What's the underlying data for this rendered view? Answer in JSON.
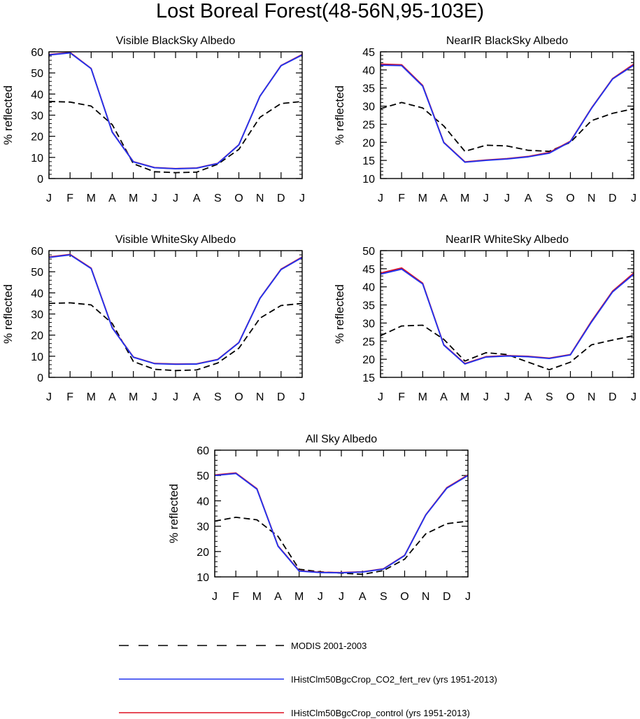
{
  "figure": {
    "title": "Lost Boreal Forest(48-56N,95-103E)"
  },
  "colors": {
    "modis": "#000000",
    "co2_fert_rev": "#2233ee",
    "control": "#dd1122"
  },
  "chart_data": [
    {
      "type": "line",
      "title": "Visible BlackSky Albedo",
      "ylabel": "% reflected",
      "xlabel": "",
      "categories": [
        "J",
        "F",
        "M",
        "A",
        "M",
        "J",
        "J",
        "A",
        "S",
        "O",
        "N",
        "D",
        "J"
      ],
      "ylim": [
        0,
        60
      ],
      "yticks": [
        0,
        10,
        20,
        30,
        40,
        50,
        60
      ],
      "series": [
        {
          "name": "MODIS 2001-2003",
          "values": [
            36.5,
            36.2,
            34.3,
            25.5,
            7.0,
            3.2,
            2.8,
            3.0,
            6.8,
            13.8,
            29.0,
            35.5,
            36.5
          ]
        },
        {
          "name": "IHistClm50BgcCrop_control (yrs 1951-2013)",
          "values": [
            58.7,
            59.7,
            52.1,
            22.0,
            8.0,
            5.2,
            4.7,
            5.0,
            7.2,
            16.0,
            39.0,
            53.5,
            58.7
          ]
        },
        {
          "name": "IHistClm50BgcCrop_CO2_fert_rev (yrs 1951-2013)",
          "values": [
            58.5,
            59.5,
            52.0,
            21.9,
            7.9,
            5.1,
            4.6,
            4.9,
            7.1,
            15.9,
            39.0,
            53.4,
            58.5
          ]
        }
      ],
      "grid": false
    },
    {
      "type": "line",
      "title": "NearIR BlackSky Albedo",
      "ylabel": "% reflected",
      "xlabel": "",
      "categories": [
        "J",
        "F",
        "M",
        "A",
        "M",
        "J",
        "J",
        "A",
        "S",
        "O",
        "N",
        "D",
        "J"
      ],
      "ylim": [
        10,
        45
      ],
      "yticks": [
        10,
        15,
        20,
        25,
        30,
        35,
        40,
        45
      ],
      "series": [
        {
          "name": "MODIS 2001-2003",
          "values": [
            29.3,
            31.0,
            29.5,
            24.5,
            17.5,
            19.2,
            19.0,
            17.8,
            17.5,
            20.0,
            26.0,
            28.0,
            29.3
          ]
        },
        {
          "name": "IHistClm50BgcCrop_control (yrs 1951-2013)",
          "values": [
            41.6,
            41.4,
            35.7,
            20.0,
            14.6,
            15.1,
            15.5,
            16.1,
            17.2,
            20.3,
            29.5,
            37.6,
            41.6
          ]
        },
        {
          "name": "IHistClm50BgcCrop_CO2_fert_rev (yrs 1951-2013)",
          "values": [
            41.3,
            41.2,
            35.5,
            19.9,
            14.5,
            15.0,
            15.4,
            16.0,
            17.0,
            20.2,
            29.4,
            37.5,
            41.3
          ]
        }
      ],
      "grid": false
    },
    {
      "type": "line",
      "title": "Visible WhiteSky Albedo",
      "ylabel": "% reflected",
      "xlabel": "",
      "categories": [
        "J",
        "F",
        "M",
        "A",
        "M",
        "J",
        "J",
        "A",
        "S",
        "O",
        "N",
        "D",
        "J"
      ],
      "ylim": [
        0,
        60
      ],
      "yticks": [
        0,
        10,
        20,
        30,
        40,
        50,
        60
      ],
      "series": [
        {
          "name": "MODIS 2001-2003",
          "values": [
            35.0,
            35.3,
            34.3,
            25.5,
            7.5,
            3.8,
            3.2,
            3.5,
            6.8,
            13.8,
            28.0,
            34.0,
            35.0
          ]
        },
        {
          "name": "IHistClm50BgcCrop_control (yrs 1951-2013)",
          "values": [
            57.0,
            58.2,
            51.7,
            23.5,
            9.6,
            6.6,
            6.3,
            6.4,
            8.5,
            16.5,
            37.5,
            51.2,
            57.0
          ]
        },
        {
          "name": "IHistClm50BgcCrop_CO2_fert_rev (yrs 1951-2013)",
          "values": [
            56.8,
            58.0,
            51.5,
            23.4,
            9.5,
            6.5,
            6.2,
            6.3,
            8.4,
            16.4,
            37.4,
            51.0,
            56.8
          ]
        }
      ],
      "grid": false
    },
    {
      "type": "line",
      "title": "NearIR WhiteSky Albedo",
      "ylabel": "% reflected",
      "xlabel": "",
      "categories": [
        "J",
        "F",
        "M",
        "A",
        "M",
        "J",
        "J",
        "A",
        "S",
        "O",
        "N",
        "D",
        "J"
      ],
      "ylim": [
        15,
        50
      ],
      "yticks": [
        15,
        20,
        25,
        30,
        35,
        40,
        45,
        50
      ],
      "series": [
        {
          "name": "MODIS 2001-2003",
          "values": [
            26.5,
            29.2,
            29.4,
            25.5,
            19.5,
            21.8,
            21.3,
            19.2,
            17.1,
            19.2,
            24.0,
            25.3,
            26.5
          ]
        },
        {
          "name": "IHistClm50BgcCrop_control (yrs 1951-2013)",
          "values": [
            43.8,
            45.2,
            41.0,
            24.0,
            18.8,
            20.7,
            21.0,
            20.8,
            20.3,
            21.3,
            30.5,
            38.8,
            43.8
          ]
        },
        {
          "name": "IHistClm50BgcCrop_CO2_fert_rev (yrs 1951-2013)",
          "values": [
            43.5,
            44.9,
            40.8,
            23.9,
            18.7,
            20.6,
            20.9,
            20.7,
            20.2,
            21.2,
            30.3,
            38.6,
            43.5
          ]
        }
      ],
      "grid": false
    },
    {
      "type": "line",
      "title": "All Sky Albedo",
      "ylabel": "% reflected",
      "xlabel": "",
      "categories": [
        "J",
        "F",
        "M",
        "A",
        "M",
        "J",
        "J",
        "A",
        "S",
        "O",
        "N",
        "D",
        "J"
      ],
      "ylim": [
        10,
        60
      ],
      "yticks": [
        10,
        20,
        30,
        40,
        50,
        60
      ],
      "series": [
        {
          "name": "MODIS 2001-2003",
          "values": [
            32.0,
            33.5,
            32.5,
            26.0,
            13.0,
            12.0,
            11.5,
            11.0,
            12.5,
            17.0,
            27.0,
            31.0,
            32.0
          ]
        },
        {
          "name": "IHistClm50BgcCrop_control (yrs 1951-2013)",
          "values": [
            50.2,
            51.0,
            44.8,
            22.2,
            12.4,
            11.8,
            11.7,
            12.0,
            13.2,
            18.5,
            34.5,
            45.2,
            50.2
          ]
        },
        {
          "name": "IHistClm50BgcCrop_CO2_fert_rev (yrs 1951-2013)",
          "values": [
            50.0,
            50.8,
            44.6,
            22.1,
            12.3,
            11.7,
            11.6,
            11.9,
            13.1,
            18.4,
            34.4,
            45.0,
            50.0
          ]
        }
      ],
      "grid": false
    }
  ],
  "legend": {
    "placement": "bottom",
    "entries": [
      {
        "label": "MODIS 2001-2003",
        "style": "dashed",
        "color": "#000000"
      },
      {
        "label": "IHistClm50BgcCrop_CO2_fert_rev (yrs 1951-2013)",
        "style": "solid",
        "color": "#2233ee"
      },
      {
        "label": "IHistClm50BgcCrop_control (yrs 1951-2013)",
        "style": "solid",
        "color": "#dd1122"
      }
    ]
  }
}
